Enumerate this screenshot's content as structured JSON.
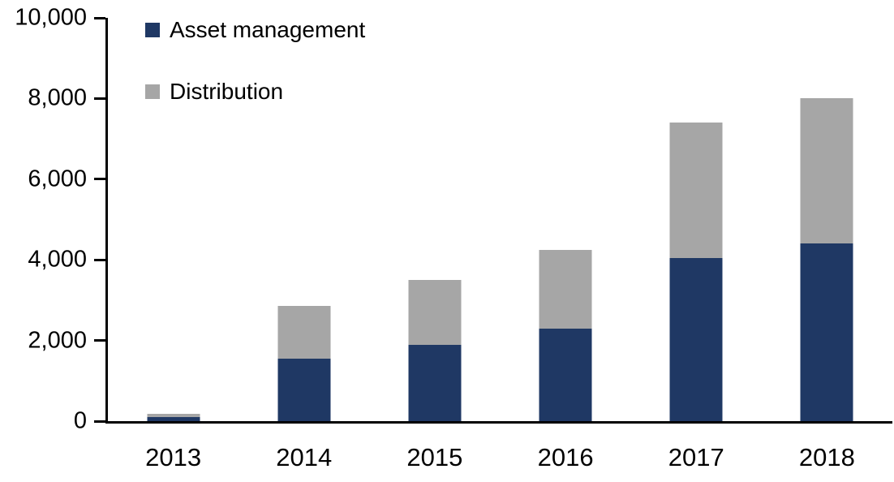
{
  "chart_data": {
    "type": "bar",
    "stacked": true,
    "title": "",
    "xlabel": "",
    "ylabel": "",
    "categories": [
      "2013",
      "2014",
      "2015",
      "2016",
      "2017",
      "2018"
    ],
    "series": [
      {
        "name": "Asset management",
        "color": "#1F3864",
        "values": [
          100,
          1550,
          1900,
          2300,
          4050,
          4400
        ]
      },
      {
        "name": "Distribution",
        "color": "#A6A6A6",
        "values": [
          90,
          1300,
          1600,
          1950,
          3350,
          3600
        ]
      }
    ],
    "totals": [
      190,
      2850,
      3500,
      4250,
      7400,
      8000
    ],
    "ylim": [
      0,
      10000
    ],
    "yticks": [
      0,
      2000,
      4000,
      6000,
      8000,
      10000
    ],
    "ytick_labels": [
      "0",
      "2,000",
      "4,000",
      "6,000",
      "8,000",
      "10,000"
    ],
    "grid": false,
    "legend_position": "top-left-inside"
  },
  "colors": {
    "axis": "#000000",
    "background": "#FFFFFF",
    "text": "#000000",
    "asset_management": "#1F3864",
    "distribution": "#A6A6A6"
  }
}
